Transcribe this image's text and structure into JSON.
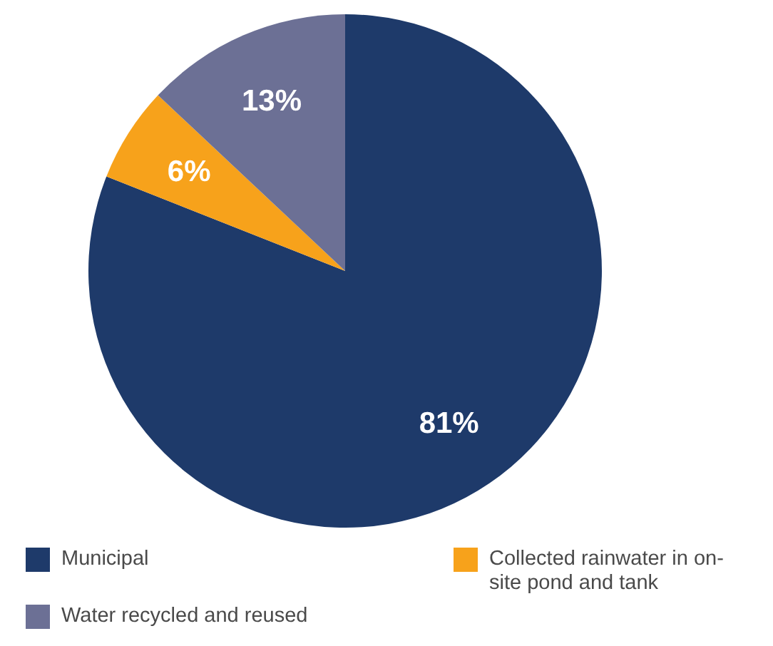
{
  "chart_data": {
    "type": "pie",
    "categories": [
      "Municipal",
      "Collected rainwater in on-site pond and tank",
      "Water recycled and reused"
    ],
    "values": [
      81,
      6,
      13
    ],
    "colors": [
      "#1e3a6a",
      "#f7a21b",
      "#6c7095"
    ],
    "value_labels": [
      "81%",
      "6%",
      "13%"
    ],
    "legend": "bottom"
  }
}
